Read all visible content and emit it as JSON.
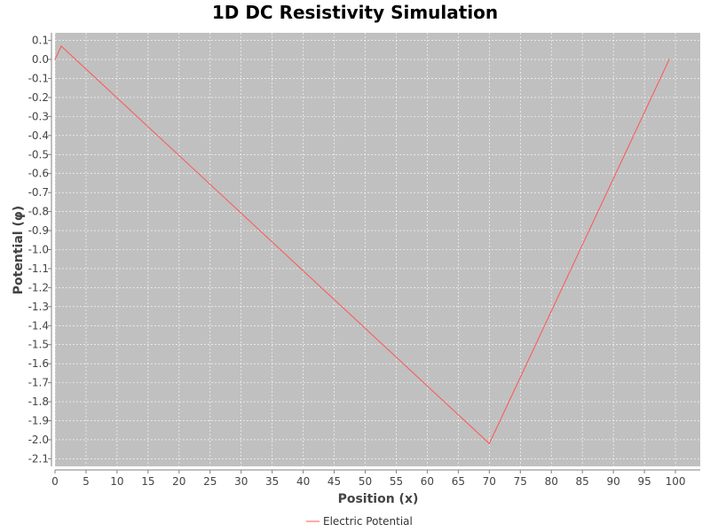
{
  "chart_data": {
    "type": "line",
    "title": "1D DC Resistivity Simulation",
    "xlabel": "Position (x)",
    "ylabel": "Potential (φ)",
    "xlim": [
      0,
      104
    ],
    "ylim": [
      -2.14,
      0.14
    ],
    "x_ticks": [
      0,
      5,
      10,
      15,
      20,
      25,
      30,
      35,
      40,
      45,
      50,
      55,
      60,
      65,
      70,
      75,
      80,
      85,
      90,
      95,
      100
    ],
    "y_ticks": [
      0.1,
      0.0,
      -0.1,
      -0.2,
      -0.3,
      -0.4,
      -0.5,
      -0.6,
      -0.7,
      -0.8,
      -0.9,
      -1.0,
      -1.1,
      -1.2,
      -1.3,
      -1.4,
      -1.5,
      -1.6,
      -1.7,
      -1.8,
      -1.9,
      -2.0,
      -2.1
    ],
    "grid": true,
    "legend_position": "bottom",
    "colors": {
      "plot_background": "#c0c0c0",
      "grid": "#ffffff",
      "series": "#ff5555"
    },
    "series": [
      {
        "name": "Electric Potential",
        "x": [
          0,
          1,
          70,
          99
        ],
        "y": [
          0.0,
          0.07,
          -2.02,
          0.0
        ]
      }
    ]
  }
}
